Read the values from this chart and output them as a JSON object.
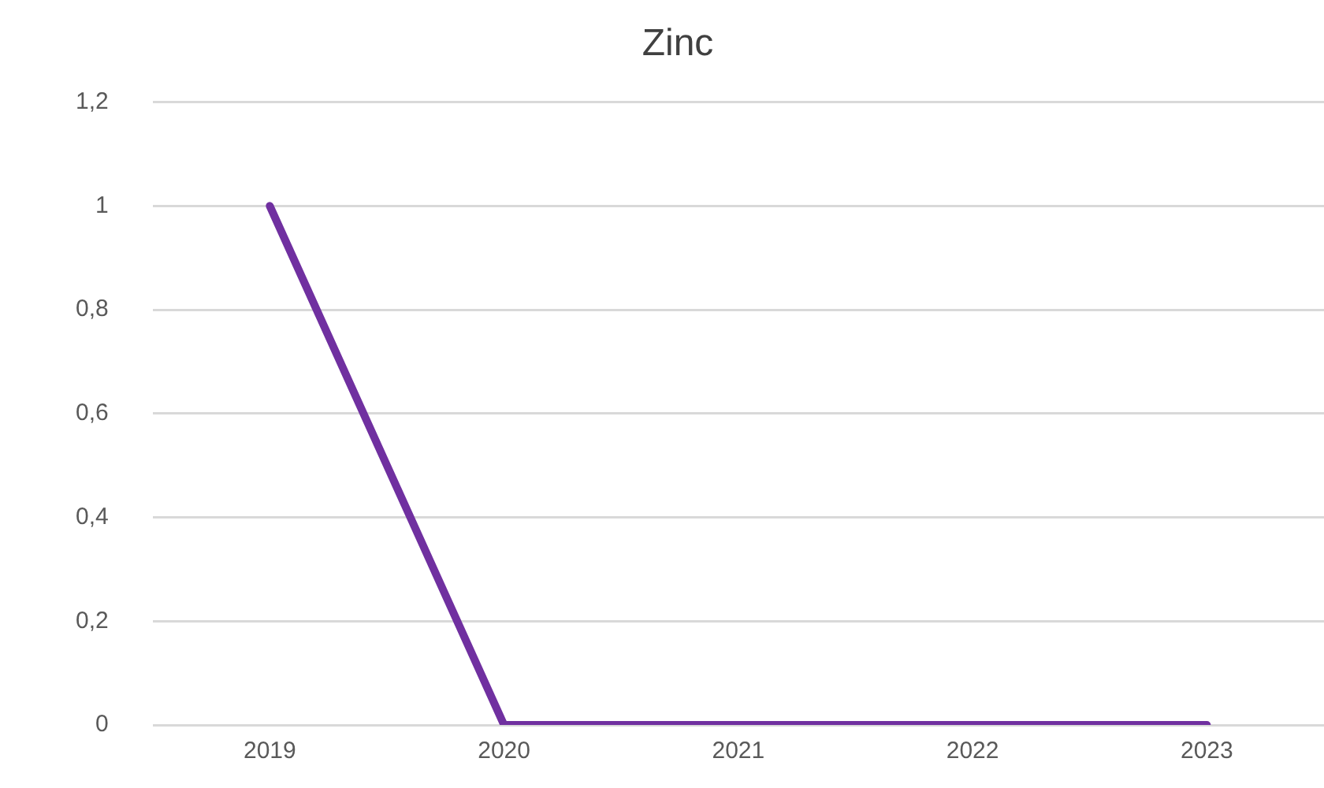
{
  "chart_data": {
    "type": "line",
    "title": "Zinc",
    "categories": [
      "2019",
      "2020",
      "2021",
      "2022",
      "2023"
    ],
    "series": [
      {
        "color": "#7030a0",
        "values": [
          1,
          0,
          0,
          0,
          0
        ]
      }
    ],
    "ylim": [
      0,
      1.2
    ],
    "yticks": [
      {
        "value": 0,
        "label": "0"
      },
      {
        "value": 0.2,
        "label": "0,2"
      },
      {
        "value": 0.4,
        "label": "0,4"
      },
      {
        "value": 0.6,
        "label": "0,6"
      },
      {
        "value": 0.8,
        "label": "0,8"
      },
      {
        "value": 1,
        "label": "1"
      },
      {
        "value": 1.2,
        "label": "1,2"
      }
    ],
    "grid": "y",
    "legend": false,
    "marker": "none",
    "line_style": "solid"
  }
}
